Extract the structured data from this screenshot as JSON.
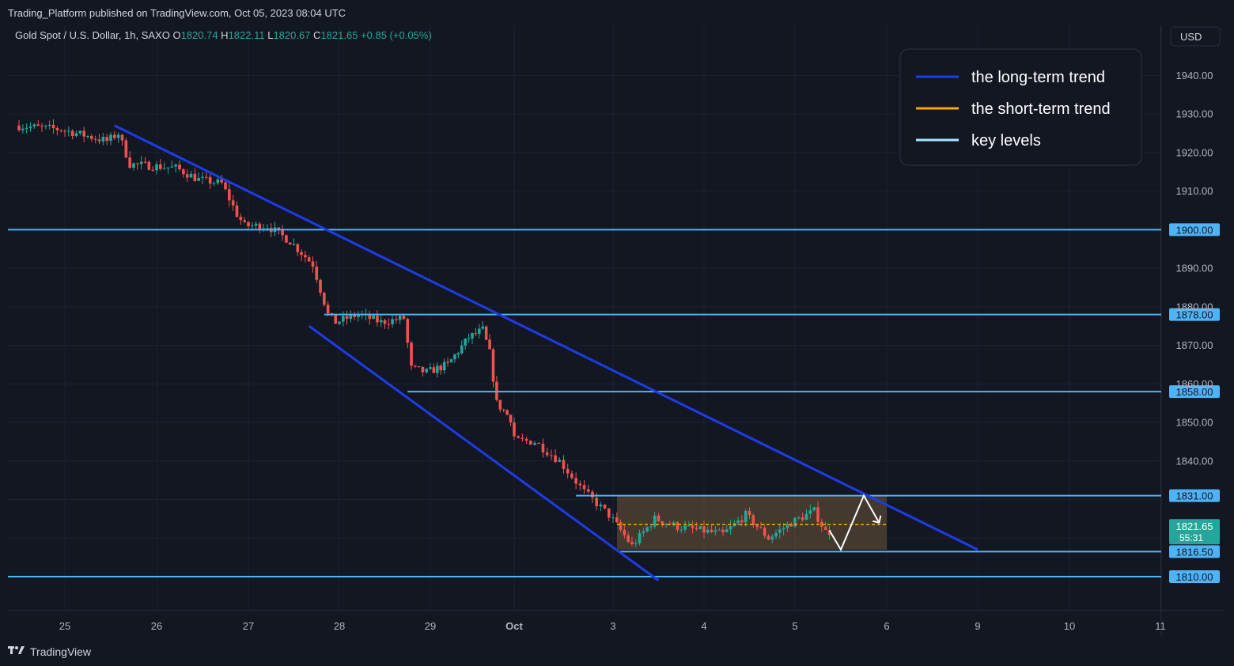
{
  "header": {
    "published": "Trading_Platform published on TradingView.com, Oct 05, 2023 08:04 UTC"
  },
  "footer": {
    "brand": "TradingView",
    "brand_icon": "tradingview-logo-icon"
  },
  "colors": {
    "background": "#131722",
    "up": "#26a69a",
    "down": "#ef5350",
    "long_trend": "#1f3bea",
    "short_trend": "#f7a600",
    "key_level": "#4fb3f6",
    "range_box": "#6b5638"
  },
  "chart_data": {
    "type": "candlestick",
    "symbol_label": "Gold Spot / U.S. Dollar, 1h, SAXO",
    "ohlc": {
      "o_label": "O",
      "o": "1820.74",
      "h_label": "H",
      "h": "1822.11",
      "l_label": "L",
      "l": "1820.67",
      "c_label": "C",
      "c": "1821.65",
      "change": "+0.85 (+0.05%)"
    },
    "currency": "USD",
    "last_price": "1821.65",
    "countdown": "55:31",
    "y_ticks": [
      "1940.00",
      "1930.00",
      "1920.00",
      "1910.00",
      "1890.00",
      "1880.00",
      "1870.00",
      "1860.00",
      "1850.00",
      "1840.00"
    ],
    "ylim": [
      1803,
      1950
    ],
    "x_ticks": [
      "25",
      "26",
      "27",
      "28",
      "29",
      "Oct",
      "3",
      "4",
      "5",
      "6",
      "9",
      "10",
      "11"
    ],
    "key_levels": [
      {
        "price": 1900.0,
        "label": "1900.00",
        "from": "start"
      },
      {
        "price": 1878.0,
        "label": "1878.00",
        "from": "28"
      },
      {
        "price": 1858.0,
        "label": "1858.00",
        "from": "29"
      },
      {
        "price": 1831.0,
        "label": "1831.00",
        "from": "Oct 2"
      },
      {
        "price": 1816.5,
        "label": "1816.50",
        "from": "3"
      },
      {
        "price": 1810.0,
        "label": "1810.00",
        "from": "start"
      }
    ],
    "long_term_trend_lines": [
      {
        "from": [
          "Sep 25 13:00",
          1927
        ],
        "to": [
          "Oct 9 00:00",
          1817
        ]
      },
      {
        "from": [
          "Sep 27 16:00",
          1875
        ],
        "to": [
          "Oct 3 12:00",
          1809
        ]
      }
    ],
    "short_term_trend": {
      "price": 1823.5,
      "from": "Oct 3",
      "to": "Oct 6"
    },
    "range_box": {
      "top": 1831,
      "bottom": 1817,
      "from": "Oct 3",
      "to": "Oct 6"
    },
    "projection_path": [
      [
        "Oct 5 09:00",
        1822
      ],
      [
        "Oct 5 12:00",
        1817
      ],
      [
        "Oct 5 18:00",
        1831
      ],
      [
        "Oct 5 22:00",
        1824
      ]
    ],
    "legend": {
      "placement": "top-right",
      "items": [
        {
          "label": "the long-term trend",
          "color": "#1f3bea"
        },
        {
          "label": "the short-term trend",
          "color": "#f7a600"
        },
        {
          "label": "key levels",
          "color": "#a6e8ff"
        }
      ]
    },
    "price_path": [
      [
        "Sep 24 12:00",
        1927
      ],
      [
        "Sep 25 00:00",
        1926
      ],
      [
        "Sep 25 12:00",
        1923
      ],
      [
        "Sep 25 15:00",
        1925
      ],
      [
        "Sep 25 18:00",
        1917
      ],
      [
        "Sep 26 06:00",
        1916
      ],
      [
        "Sep 26 12:00",
        1913
      ],
      [
        "Sep 26 18:00",
        1912
      ],
      [
        "Sep 26 22:00",
        1904
      ],
      [
        "Sep 27 00:00",
        1901
      ],
      [
        "Sep 27 06:00",
        1901
      ],
      [
        "Sep 27 12:00",
        1897
      ],
      [
        "Sep 27 18:00",
        1891
      ],
      [
        "Sep 27 22:00",
        1878
      ],
      [
        "Sep 28 00:00",
        1876
      ],
      [
        "Sep 28 06:00",
        1878
      ],
      [
        "Sep 28 12:00",
        1876
      ],
      [
        "Sep 28 18:00",
        1877
      ],
      [
        "Sep 28 20:00",
        1864
      ],
      [
        "Sep 29 00:00",
        1863
      ],
      [
        "Sep 29 06:00",
        1865
      ],
      [
        "Sep 29 12:00",
        1872
      ],
      [
        "Sep 29 16:00",
        1874
      ],
      [
        "Sep 29 18:00",
        1868
      ],
      [
        "Sep 29 20:00",
        1855
      ],
      [
        "Sep 30 02:00",
        1849
      ],
      [
        "Oct 2 06:00",
        1845
      ],
      [
        "Oct 2 12:00",
        1840
      ],
      [
        "Oct 2 18:00",
        1832
      ],
      [
        "Oct 3 00:00",
        1826
      ],
      [
        "Oct 3 06:00",
        1818
      ],
      [
        "Oct 3 12:00",
        1825
      ],
      [
        "Oct 3 18:00",
        1823
      ],
      [
        "Oct 4 06:00",
        1821
      ],
      [
        "Oct 4 12:00",
        1826
      ],
      [
        "Oct 4 18:00",
        1820
      ],
      [
        "Oct 5 00:00",
        1824
      ],
      [
        "Oct 5 06:00",
        1827
      ],
      [
        "Oct 5 09:00",
        1821.65
      ]
    ]
  }
}
